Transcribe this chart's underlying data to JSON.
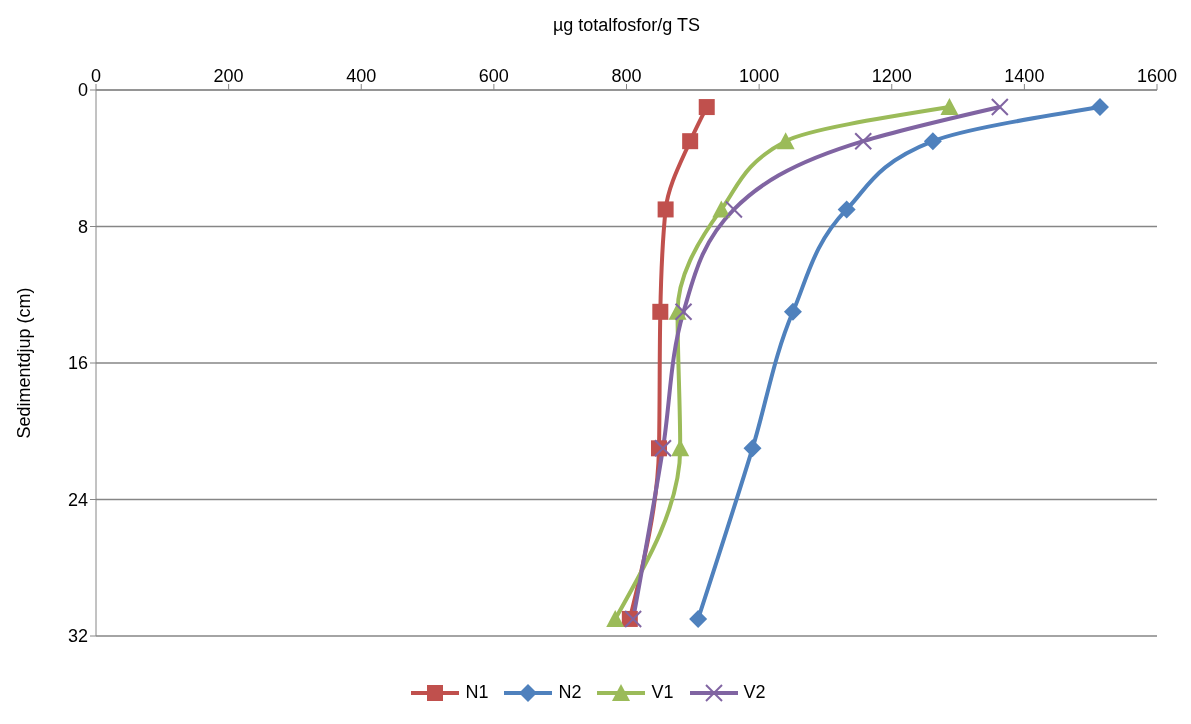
{
  "chart_data": {
    "type": "line",
    "orientation": "horizontal",
    "xlabel": "µg totalfosfor/g TS",
    "ylabel": "Sedimentdjup (cm)",
    "x": [
      1,
      3,
      7,
      13,
      21,
      31
    ],
    "series": [
      {
        "name": "N1",
        "color": "#c0504d",
        "marker": "square",
        "values": [
          921,
          896,
          859,
          851,
          849,
          805
        ]
      },
      {
        "name": "N2",
        "color": "#4f81bd",
        "marker": "diamond",
        "values": [
          1514,
          1262,
          1132,
          1051,
          990,
          908
        ]
      },
      {
        "name": "V1",
        "color": "#9bbb59",
        "marker": "triangle",
        "values": [
          1287,
          1040,
          943,
          877,
          881,
          783
        ]
      },
      {
        "name": "V2",
        "color": "#8064a2",
        "marker": "cross",
        "values": [
          1363,
          1157,
          962,
          886,
          855,
          810
        ]
      }
    ],
    "xlim": [
      0,
      1600
    ],
    "xticks": [
      0,
      200,
      400,
      600,
      800,
      1000,
      1200,
      1400,
      1600
    ],
    "ylim": [
      32,
      0
    ],
    "yticks": [
      0,
      8,
      16,
      24,
      32
    ],
    "grid": "y",
    "legend": "bottom",
    "line_style": "solid"
  }
}
